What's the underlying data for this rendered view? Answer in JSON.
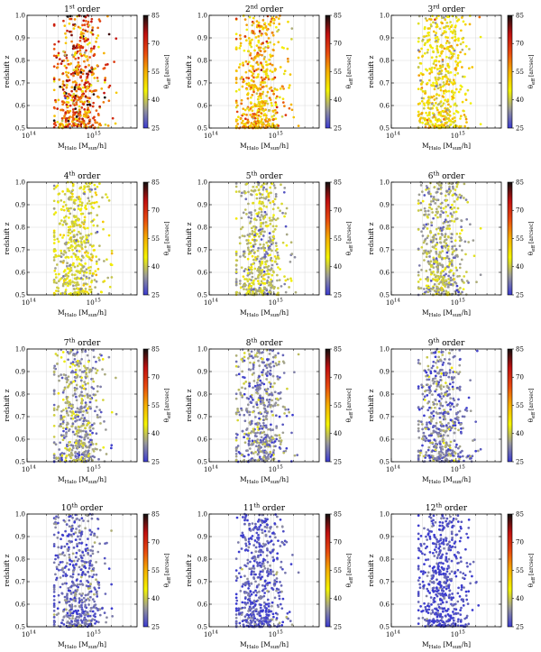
{
  "figure": {
    "rows": 4,
    "cols": 3,
    "colorbar": {
      "label": "θeff [arcsec]",
      "label_main": "θ",
      "label_sub": "eff",
      "label_unit": " [arcsec]",
      "range": [
        25,
        85
      ],
      "ticks": [
        "25",
        "40",
        "55",
        "70",
        "85"
      ],
      "colors": [
        "#3a3ad0",
        "#9a9a9a",
        "#f4f400",
        "#f5b000",
        "#e84a10",
        "#c01010",
        "#101010"
      ]
    },
    "axes": {
      "xlabel": "MHalo [Msun/h]",
      "xlabel_main": "M",
      "xlabel_sub": "Halo",
      "xlabel_unit_prefix": " [M",
      "xlabel_unit_sub": "sun",
      "xlabel_unit_suffix": "/h]",
      "ylabel": "redshift z",
      "xlim": [
        100000000000000.0,
        5000000000000000.0
      ],
      "ylim": [
        0.5,
        1.0
      ],
      "xticks": [
        {
          "base": "10",
          "exp": "14"
        },
        {
          "base": "10",
          "exp": "15"
        }
      ],
      "yticks": [
        "0.5",
        "0.6",
        "0.7",
        "0.8",
        "0.9",
        "1.0"
      ]
    },
    "title_suffix": " order"
  },
  "chart_data": [
    {
      "type": "scatter",
      "order": 1,
      "title_num": "1",
      "title_sup": "st",
      "title": "1st order",
      "mean_theta": 64,
      "spread": 12,
      "n_points": 520,
      "xlabel": "MHalo [Msun/h]",
      "ylabel": "redshift z"
    },
    {
      "type": "scatter",
      "order": 2,
      "title_num": "2",
      "title_sup": "nd",
      "title": "2nd order",
      "mean_theta": 54,
      "spread": 8,
      "n_points": 520,
      "xlabel": "MHalo [Msun/h]",
      "ylabel": "redshift z"
    },
    {
      "type": "scatter",
      "order": 3,
      "title_num": "3",
      "title_sup": "rd",
      "title": "3rd order",
      "mean_theta": 47,
      "spread": 6,
      "n_points": 520,
      "xlabel": "MHalo [Msun/h]",
      "ylabel": "redshift z"
    },
    {
      "type": "scatter",
      "order": 4,
      "title_num": "4",
      "title_sup": "th",
      "title": "4th order",
      "mean_theta": 42,
      "spread": 5,
      "n_points": 520,
      "xlabel": "MHalo [Msun/h]",
      "ylabel": "redshift z"
    },
    {
      "type": "scatter",
      "order": 5,
      "title_num": "5",
      "title_sup": "th",
      "title": "5th order",
      "mean_theta": 39,
      "spread": 5,
      "n_points": 520,
      "xlabel": "MHalo [Msun/h]",
      "ylabel": "redshift z"
    },
    {
      "type": "scatter",
      "order": 6,
      "title_num": "6",
      "title_sup": "th",
      "title": "6th order",
      "mean_theta": 37,
      "spread": 5,
      "n_points": 520,
      "xlabel": "MHalo [Msun/h]",
      "ylabel": "redshift z"
    },
    {
      "type": "scatter",
      "order": 7,
      "title_num": "7",
      "title_sup": "th",
      "title": "7th order",
      "mean_theta": 35,
      "spread": 5,
      "n_points": 520,
      "xlabel": "MHalo [Msun/h]",
      "ylabel": "redshift z"
    },
    {
      "type": "scatter",
      "order": 8,
      "title_num": "8",
      "title_sup": "th",
      "title": "8th order",
      "mean_theta": 33,
      "spread": 5,
      "n_points": 520,
      "xlabel": "MHalo [Msun/h]",
      "ylabel": "redshift z"
    },
    {
      "type": "scatter",
      "order": 9,
      "title_num": "9",
      "title_sup": "th",
      "title": "9th order",
      "mean_theta": 32,
      "spread": 5,
      "n_points": 520,
      "xlabel": "MHalo [Msun/h]",
      "ylabel": "redshift z"
    },
    {
      "type": "scatter",
      "order": 10,
      "title_num": "10",
      "title_sup": "th",
      "title": "10th order",
      "mean_theta": 30,
      "spread": 4,
      "n_points": 520,
      "xlabel": "MHalo [Msun/h]",
      "ylabel": "redshift z"
    },
    {
      "type": "scatter",
      "order": 11,
      "title_num": "11",
      "title_sup": "th",
      "title": "11th order",
      "mean_theta": 28,
      "spread": 4,
      "n_points": 520,
      "xlabel": "MHalo [Msun/h]",
      "ylabel": "redshift z"
    },
    {
      "type": "scatter",
      "order": 12,
      "title_num": "12",
      "title_sup": "th",
      "title": "12th order",
      "mean_theta": 27,
      "spread": 3,
      "n_points": 520,
      "xlabel": "MHalo [Msun/h]",
      "ylabel": "redshift z"
    }
  ]
}
